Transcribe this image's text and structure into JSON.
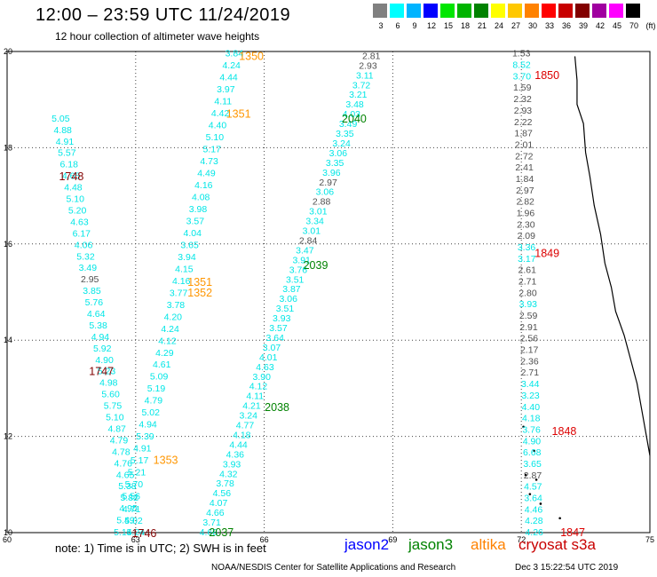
{
  "header": {
    "title": "12:00 – 23:59 UTC 11/24/2019",
    "subtitle": "12 hour collection of altimeter wave heights"
  },
  "legend": {
    "colors": [
      "#808080",
      "#00ffff",
      "#00b4ff",
      "#0000ff",
      "#00e600",
      "#00b400",
      "#008200",
      "#ffff00",
      "#ffc800",
      "#ff8200",
      "#ff0000",
      "#c80000",
      "#820000",
      "#a000a0",
      "#ff00ff",
      "#000000"
    ],
    "labels": [
      "3",
      "6",
      "9",
      "12",
      "15",
      "18",
      "21",
      "24",
      "27",
      "30",
      "33",
      "36",
      "39",
      "42",
      "45",
      "70",
      "(ft)"
    ]
  },
  "axes": {
    "x_ticks": [
      "60",
      "63",
      "66",
      "69",
      "72",
      "75"
    ],
    "y_ticks": [
      "10",
      "12",
      "14",
      "16",
      "18",
      "20"
    ]
  },
  "colors": {
    "jason2": "#0000ff",
    "jason3": "#008200",
    "altika": "#ff8200",
    "cryosat": "#c80000",
    "cyan": "#00e6e6",
    "gray": "#505050",
    "darkred": "#820000",
    "darkgreen": "#008200",
    "orange": "#ff9600",
    "red": "#dc0000"
  },
  "chart_data": {
    "type": "scatter",
    "x_unit": "longitude (deg W)",
    "y_unit": "latitude (deg N)",
    "xlim": [
      60,
      75
    ],
    "ylim": [
      10,
      20
    ],
    "grid": "dotted",
    "track_times": [
      {
        "text": "1350",
        "lon": 65.7,
        "lat": 19.9,
        "color": "orange"
      },
      {
        "text": "1351",
        "lon": 65.4,
        "lat": 18.7,
        "color": "orange"
      },
      {
        "text": "1351",
        "lon": 64.5,
        "lat": 15.2,
        "color": "orange"
      },
      {
        "text": "1352",
        "lon": 64.5,
        "lat": 14.98,
        "color": "orange"
      },
      {
        "text": "1353",
        "lon": 63.7,
        "lat": 11.5,
        "color": "orange"
      },
      {
        "text": "2040",
        "lon": 68.1,
        "lat": 18.6,
        "color": "darkgreen"
      },
      {
        "text": "2039",
        "lon": 67.2,
        "lat": 15.55,
        "color": "darkgreen"
      },
      {
        "text": "2038",
        "lon": 66.3,
        "lat": 12.6,
        "color": "darkgreen"
      },
      {
        "text": "2037",
        "lon": 65.0,
        "lat": 10.0,
        "color": "darkgreen"
      },
      {
        "text": "1748",
        "lon": 61.5,
        "lat": 17.4,
        "color": "darkred"
      },
      {
        "text": "1747",
        "lon": 62.2,
        "lat": 13.35,
        "color": "darkred"
      },
      {
        "text": "1746",
        "lon": 63.2,
        "lat": 9.98,
        "color": "darkred"
      },
      {
        "text": "1850",
        "lon": 72.6,
        "lat": 19.5,
        "color": "red"
      },
      {
        "text": "1849",
        "lon": 72.6,
        "lat": 15.8,
        "color": "red"
      },
      {
        "text": "1848",
        "lon": 73.0,
        "lat": 12.1,
        "color": "red"
      },
      {
        "text": "1847",
        "lon": 73.2,
        "lat": 10.0,
        "color": "red"
      }
    ],
    "tracks": [
      {
        "color": "cyan",
        "start": [
          61.25,
          18.6
        ],
        "end": [
          63.0,
          10.0
        ],
        "values": [
          "5.05",
          "4.88",
          "4.91",
          "5.57",
          "6.18",
          "4.65",
          "4.48",
          "5.10",
          "5.20",
          "4.63",
          "6.17",
          "4.06",
          "5.32",
          "3.49",
          "2.95",
          "3.85",
          "5.76",
          "4.64",
          "5.38",
          "4.94",
          "5.92",
          "4.90",
          "5.23",
          "4.98",
          "5.60",
          "5.75",
          "5.10",
          "4.87",
          "4.79",
          "4.78",
          "4.76",
          "4.65",
          "5.38",
          "5.82",
          "4.71",
          "5.02",
          "5.24"
        ],
        "gray_idx": [
          14
        ]
      },
      {
        "color": "cyan",
        "start": [
          65.3,
          19.95
        ],
        "end": [
          62.7,
          10.0
        ],
        "values": [
          "3.84",
          "4.24",
          "4.44",
          "3.97",
          "4.11",
          "4.42",
          "4.40",
          "5.10",
          "5.17",
          "4.73",
          "4.49",
          "4.16",
          "4.08",
          "3.98",
          "3.57",
          "4.04",
          "3.65",
          "3.94",
          "4.15",
          "4.16",
          "3.77",
          "3.78",
          "4.20",
          "4.24",
          "4.12",
          "4.29",
          "4.61",
          "5.09",
          "5.19",
          "4.79",
          "5.02",
          "4.94",
          "5.39",
          "4.91",
          "5.17",
          "5.21",
          "5.70",
          "5.56",
          "4.95",
          "5.49",
          "5.14"
        ]
      },
      {
        "color": "cyan",
        "start": [
          68.5,
          19.9
        ],
        "end": [
          64.7,
          10.0
        ],
        "values": [
          "2.81",
          "2.93",
          "3.11",
          "3.72",
          "3.21",
          "3.48",
          "4.03",
          "3.49",
          "3.35",
          "3.24",
          "3.06",
          "3.35",
          "3.96",
          "2.97",
          "3.06",
          "2.88",
          "3.01",
          "3.34",
          "3.01",
          "2.84",
          "3.47",
          "3.91",
          "3.76",
          "3.51",
          "3.87",
          "3.06",
          "3.51",
          "3.93",
          "3.57",
          "3.64",
          "3.07",
          "4.01",
          "4.63",
          "3.90",
          "4.12",
          "4.11",
          "4.21",
          "3.24",
          "4.77",
          "4.18",
          "4.44",
          "4.36",
          "3.93",
          "4.32",
          "3.78",
          "4.56",
          "4.07",
          "4.66",
          "3.71",
          "4.68"
        ],
        "gray_idx": [
          0,
          1,
          13,
          15,
          19
        ]
      },
      {
        "color": "gray",
        "start": [
          72.0,
          19.95
        ],
        "end": [
          72.3,
          10.0
        ],
        "values": [
          "1.53",
          "8.52",
          "3.70",
          "1.59",
          "2.32",
          "2.93",
          "2.22",
          "1.87",
          "2.01",
          "2.72",
          "2.41",
          "1.84",
          "2.97",
          "2.82",
          "1.96",
          "2.30",
          "2.09",
          "3.36",
          "3.17",
          "2.61",
          "2.71",
          "2.80",
          "3.93",
          "2.59",
          "2.91",
          "2.56",
          "2.17",
          "2.36",
          "2.71",
          "3.44",
          "3.23",
          "4.40",
          "4.18",
          "3.76",
          "4.90",
          "6.68",
          "3.65",
          "2.87",
          "4.57",
          "3.64",
          "4.46",
          "4.28",
          "4.26"
        ],
        "cyan_idx": [
          1,
          2,
          17,
          18,
          22,
          29,
          30,
          31,
          32,
          33,
          34,
          35,
          36,
          38,
          39,
          40,
          41,
          42
        ]
      }
    ]
  },
  "notes": {
    "note_text": "note:  1) Time is in UTC;  2) SWH is in feet",
    "jason2": "jason2",
    "jason3": "jason3",
    "altika": "altika",
    "cryosat": "cryosat s3a",
    "credit": "NOAA/NESDIS Center for Satellite Applications and Research",
    "stamp": "Dec  3 15:22:54 UTC 2019"
  }
}
